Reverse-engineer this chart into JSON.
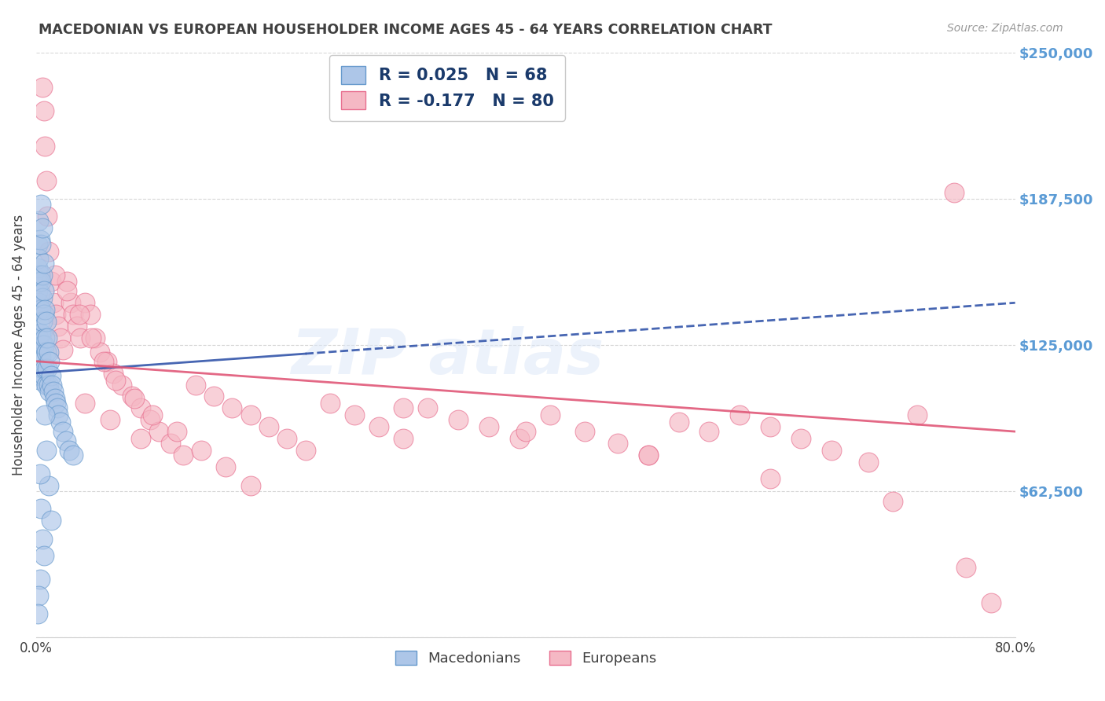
{
  "title": "MACEDONIAN VS EUROPEAN HOUSEHOLDER INCOME AGES 45 - 64 YEARS CORRELATION CHART",
  "source": "Source: ZipAtlas.com",
  "ylabel": "Householder Income Ages 45 - 64 years",
  "xlim": [
    0.0,
    0.8
  ],
  "ylim": [
    0,
    250000
  ],
  "yticks": [
    0,
    62500,
    125000,
    187500,
    250000
  ],
  "ytick_labels": [
    "",
    "$62,500",
    "$125,000",
    "$187,500",
    "$250,000"
  ],
  "xticks": [
    0.0,
    0.1,
    0.2,
    0.3,
    0.4,
    0.5,
    0.6,
    0.7,
    0.8
  ],
  "xtick_labels": [
    "0.0%",
    "",
    "",
    "",
    "",
    "",
    "",
    "",
    "80.0%"
  ],
  "mac_color": "#adc6e8",
  "mac_edge_color": "#6699cc",
  "eur_color": "#f5b8c4",
  "eur_edge_color": "#e87090",
  "mac_trend_color": "#3355aa",
  "eur_trend_color": "#e05878",
  "mac_R": 0.025,
  "mac_N": 68,
  "eur_R": -0.177,
  "eur_N": 80,
  "legend_text_color": "#1a3a6b",
  "right_label_color": "#5b9bd5",
  "background_color": "#ffffff",
  "grid_color": "#cccccc",
  "title_color": "#404040",
  "watermark_color": "#dde8f8",
  "mac_x": [
    0.001,
    0.001,
    0.001,
    0.002,
    0.002,
    0.002,
    0.002,
    0.002,
    0.003,
    0.003,
    0.003,
    0.003,
    0.003,
    0.003,
    0.003,
    0.004,
    0.004,
    0.004,
    0.004,
    0.004,
    0.004,
    0.005,
    0.005,
    0.005,
    0.005,
    0.005,
    0.006,
    0.006,
    0.006,
    0.006,
    0.007,
    0.007,
    0.007,
    0.008,
    0.008,
    0.008,
    0.009,
    0.009,
    0.01,
    0.01,
    0.011,
    0.011,
    0.012,
    0.013,
    0.014,
    0.015,
    0.016,
    0.017,
    0.018,
    0.02,
    0.022,
    0.024,
    0.027,
    0.03,
    0.004,
    0.005,
    0.006,
    0.007,
    0.008,
    0.01,
    0.003,
    0.004,
    0.005,
    0.006,
    0.003,
    0.002,
    0.001,
    0.012
  ],
  "mac_y": [
    168000,
    158000,
    148000,
    178000,
    162000,
    152000,
    143000,
    128000,
    170000,
    155000,
    147000,
    140000,
    130000,
    122000,
    112000,
    168000,
    152000,
    140000,
    130000,
    120000,
    110000,
    155000,
    145000,
    135000,
    125000,
    115000,
    148000,
    138000,
    125000,
    112000,
    140000,
    128000,
    115000,
    135000,
    122000,
    108000,
    128000,
    115000,
    122000,
    108000,
    118000,
    105000,
    112000,
    108000,
    105000,
    102000,
    100000,
    98000,
    95000,
    92000,
    88000,
    84000,
    80000,
    78000,
    185000,
    175000,
    160000,
    95000,
    80000,
    65000,
    70000,
    55000,
    42000,
    35000,
    25000,
    18000,
    10000,
    50000
  ],
  "eur_x": [
    0.005,
    0.006,
    0.007,
    0.008,
    0.009,
    0.01,
    0.012,
    0.014,
    0.016,
    0.018,
    0.02,
    0.022,
    0.025,
    0.028,
    0.03,
    0.033,
    0.036,
    0.04,
    0.044,
    0.048,
    0.052,
    0.058,
    0.063,
    0.07,
    0.078,
    0.085,
    0.093,
    0.1,
    0.11,
    0.12,
    0.13,
    0.145,
    0.16,
    0.175,
    0.19,
    0.205,
    0.22,
    0.24,
    0.26,
    0.28,
    0.3,
    0.32,
    0.345,
    0.37,
    0.395,
    0.42,
    0.448,
    0.475,
    0.5,
    0.525,
    0.55,
    0.575,
    0.6,
    0.625,
    0.65,
    0.68,
    0.72,
    0.75,
    0.015,
    0.025,
    0.035,
    0.045,
    0.055,
    0.065,
    0.08,
    0.095,
    0.115,
    0.135,
    0.155,
    0.175,
    0.04,
    0.06,
    0.085,
    0.3,
    0.4,
    0.5,
    0.6,
    0.7,
    0.76,
    0.78
  ],
  "eur_y": [
    235000,
    225000,
    210000,
    195000,
    180000,
    165000,
    152000,
    143000,
    138000,
    133000,
    128000,
    123000,
    152000,
    143000,
    138000,
    133000,
    128000,
    143000,
    138000,
    128000,
    122000,
    118000,
    113000,
    108000,
    103000,
    98000,
    93000,
    88000,
    83000,
    78000,
    108000,
    103000,
    98000,
    95000,
    90000,
    85000,
    80000,
    100000,
    95000,
    90000,
    85000,
    98000,
    93000,
    90000,
    85000,
    95000,
    88000,
    83000,
    78000,
    92000,
    88000,
    95000,
    90000,
    85000,
    80000,
    75000,
    95000,
    190000,
    155000,
    148000,
    138000,
    128000,
    118000,
    110000,
    102000,
    95000,
    88000,
    80000,
    73000,
    65000,
    100000,
    93000,
    85000,
    98000,
    88000,
    78000,
    68000,
    58000,
    30000,
    15000
  ]
}
